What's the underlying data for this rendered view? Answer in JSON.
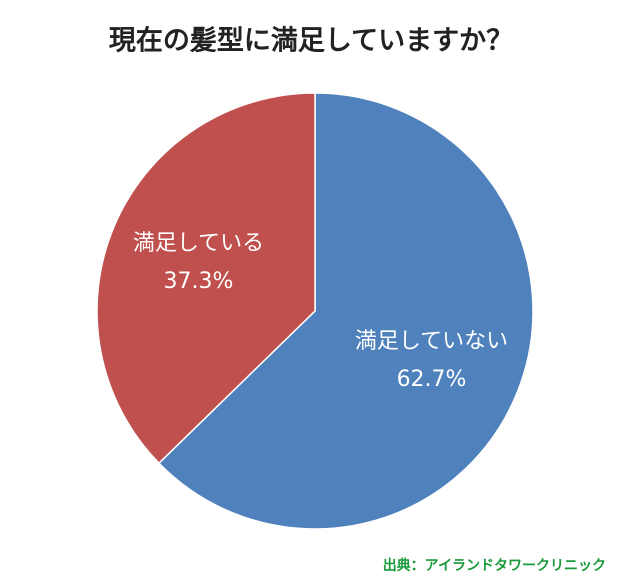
{
  "chart_data": {
    "type": "pie",
    "title": "現在の髪型に満足していますか？",
    "categories": [
      "満足していない",
      "満足している"
    ],
    "values": [
      62.7,
      37.3
    ],
    "value_labels": [
      "62.7%",
      "37.3%"
    ],
    "colors": [
      "#4f81bd",
      "#c0504d"
    ],
    "source": "出典：アイランドタワークリニック"
  }
}
